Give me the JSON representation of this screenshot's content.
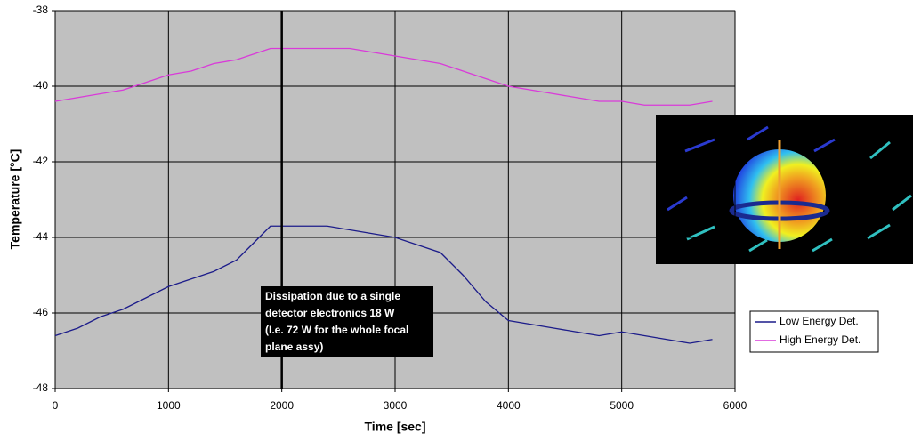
{
  "chart_data": {
    "type": "line",
    "x_label": "Time [sec]",
    "y_label": "Temperature [°C]",
    "x": [
      0,
      200,
      400,
      600,
      800,
      1000,
      1200,
      1400,
      1600,
      1700,
      1800,
      1900,
      2000,
      2200,
      2400,
      2600,
      2800,
      3000,
      3200,
      3400,
      3600,
      3800,
      4000,
      4200,
      4400,
      4600,
      4800,
      5000,
      5200,
      5400,
      5600,
      5800
    ],
    "series": [
      {
        "name": "Low Energy Det.",
        "color": "#1c1c8a",
        "values": [
          -46.6,
          -46.4,
          -46.1,
          -45.9,
          -45.6,
          -45.3,
          -45.1,
          -44.9,
          -44.6,
          -44.3,
          -44.0,
          -43.7,
          -43.7,
          -43.7,
          -43.7,
          -43.8,
          -43.9,
          -44.0,
          -44.2,
          -44.4,
          -45.0,
          -45.7,
          -46.2,
          -46.3,
          -46.4,
          -46.5,
          -46.6,
          -46.5,
          -46.6,
          -46.7,
          -46.8,
          -46.7
        ]
      },
      {
        "name": "High Energy Det.",
        "color": "#d93ad9",
        "values": [
          -40.4,
          -40.3,
          -40.2,
          -40.1,
          -39.9,
          -39.7,
          -39.6,
          -39.4,
          -39.3,
          -39.2,
          -39.1,
          -39.0,
          -39.0,
          -39.0,
          -39.0,
          -39.0,
          -39.1,
          -39.2,
          -39.3,
          -39.4,
          -39.6,
          -39.8,
          -40.0,
          -40.1,
          -40.2,
          -40.3,
          -40.4,
          -40.4,
          -40.5,
          -40.5,
          -40.5,
          -40.4
        ]
      }
    ],
    "xlim": [
      0,
      6000
    ],
    "xticks": [
      0,
      1000,
      2000,
      3000,
      4000,
      5000,
      6000
    ],
    "ylim": [
      -48,
      -38
    ],
    "yticks": [
      -48,
      -46,
      -44,
      -42,
      -40,
      -38
    ],
    "grid": true,
    "annotation": {
      "x": 2000,
      "lines": [
        "Dissipation due to a single",
        "detector electronics 18 W",
        "(I.e. 72 W for the whole focal",
        "plane assy)"
      ]
    }
  }
}
